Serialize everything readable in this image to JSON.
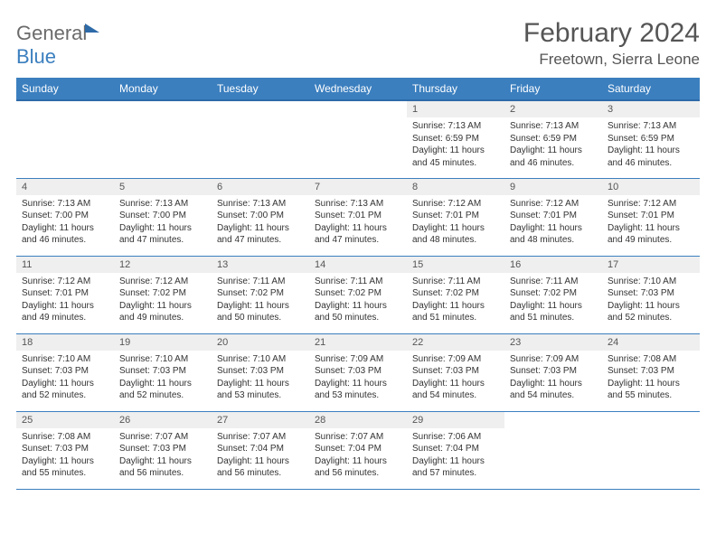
{
  "logo": {
    "word1": "General",
    "word2": "Blue"
  },
  "title": "February 2024",
  "location": "Freetown, Sierra Leone",
  "colors": {
    "header_bg": "#3b7fbf",
    "header_border": "#2d6aa8",
    "row_border": "#3b7fbf",
    "daynum_bg": "#efefef",
    "text": "#333333",
    "muted": "#555555",
    "page_bg": "#ffffff"
  },
  "weekdays": [
    "Sunday",
    "Monday",
    "Tuesday",
    "Wednesday",
    "Thursday",
    "Friday",
    "Saturday"
  ],
  "first_weekday_index": 4,
  "days": [
    {
      "n": 1,
      "sr": "7:13 AM",
      "ss": "6:59 PM",
      "dl": "11 hours and 45 minutes."
    },
    {
      "n": 2,
      "sr": "7:13 AM",
      "ss": "6:59 PM",
      "dl": "11 hours and 46 minutes."
    },
    {
      "n": 3,
      "sr": "7:13 AM",
      "ss": "6:59 PM",
      "dl": "11 hours and 46 minutes."
    },
    {
      "n": 4,
      "sr": "7:13 AM",
      "ss": "7:00 PM",
      "dl": "11 hours and 46 minutes."
    },
    {
      "n": 5,
      "sr": "7:13 AM",
      "ss": "7:00 PM",
      "dl": "11 hours and 47 minutes."
    },
    {
      "n": 6,
      "sr": "7:13 AM",
      "ss": "7:00 PM",
      "dl": "11 hours and 47 minutes."
    },
    {
      "n": 7,
      "sr": "7:13 AM",
      "ss": "7:01 PM",
      "dl": "11 hours and 47 minutes."
    },
    {
      "n": 8,
      "sr": "7:12 AM",
      "ss": "7:01 PM",
      "dl": "11 hours and 48 minutes."
    },
    {
      "n": 9,
      "sr": "7:12 AM",
      "ss": "7:01 PM",
      "dl": "11 hours and 48 minutes."
    },
    {
      "n": 10,
      "sr": "7:12 AM",
      "ss": "7:01 PM",
      "dl": "11 hours and 49 minutes."
    },
    {
      "n": 11,
      "sr": "7:12 AM",
      "ss": "7:01 PM",
      "dl": "11 hours and 49 minutes."
    },
    {
      "n": 12,
      "sr": "7:12 AM",
      "ss": "7:02 PM",
      "dl": "11 hours and 49 minutes."
    },
    {
      "n": 13,
      "sr": "7:11 AM",
      "ss": "7:02 PM",
      "dl": "11 hours and 50 minutes."
    },
    {
      "n": 14,
      "sr": "7:11 AM",
      "ss": "7:02 PM",
      "dl": "11 hours and 50 minutes."
    },
    {
      "n": 15,
      "sr": "7:11 AM",
      "ss": "7:02 PM",
      "dl": "11 hours and 51 minutes."
    },
    {
      "n": 16,
      "sr": "7:11 AM",
      "ss": "7:02 PM",
      "dl": "11 hours and 51 minutes."
    },
    {
      "n": 17,
      "sr": "7:10 AM",
      "ss": "7:03 PM",
      "dl": "11 hours and 52 minutes."
    },
    {
      "n": 18,
      "sr": "7:10 AM",
      "ss": "7:03 PM",
      "dl": "11 hours and 52 minutes."
    },
    {
      "n": 19,
      "sr": "7:10 AM",
      "ss": "7:03 PM",
      "dl": "11 hours and 52 minutes."
    },
    {
      "n": 20,
      "sr": "7:10 AM",
      "ss": "7:03 PM",
      "dl": "11 hours and 53 minutes."
    },
    {
      "n": 21,
      "sr": "7:09 AM",
      "ss": "7:03 PM",
      "dl": "11 hours and 53 minutes."
    },
    {
      "n": 22,
      "sr": "7:09 AM",
      "ss": "7:03 PM",
      "dl": "11 hours and 54 minutes."
    },
    {
      "n": 23,
      "sr": "7:09 AM",
      "ss": "7:03 PM",
      "dl": "11 hours and 54 minutes."
    },
    {
      "n": 24,
      "sr": "7:08 AM",
      "ss": "7:03 PM",
      "dl": "11 hours and 55 minutes."
    },
    {
      "n": 25,
      "sr": "7:08 AM",
      "ss": "7:03 PM",
      "dl": "11 hours and 55 minutes."
    },
    {
      "n": 26,
      "sr": "7:07 AM",
      "ss": "7:03 PM",
      "dl": "11 hours and 56 minutes."
    },
    {
      "n": 27,
      "sr": "7:07 AM",
      "ss": "7:04 PM",
      "dl": "11 hours and 56 minutes."
    },
    {
      "n": 28,
      "sr": "7:07 AM",
      "ss": "7:04 PM",
      "dl": "11 hours and 56 minutes."
    },
    {
      "n": 29,
      "sr": "7:06 AM",
      "ss": "7:04 PM",
      "dl": "11 hours and 57 minutes."
    }
  ],
  "labels": {
    "sunrise": "Sunrise:",
    "sunset": "Sunset:",
    "daylight": "Daylight:"
  }
}
